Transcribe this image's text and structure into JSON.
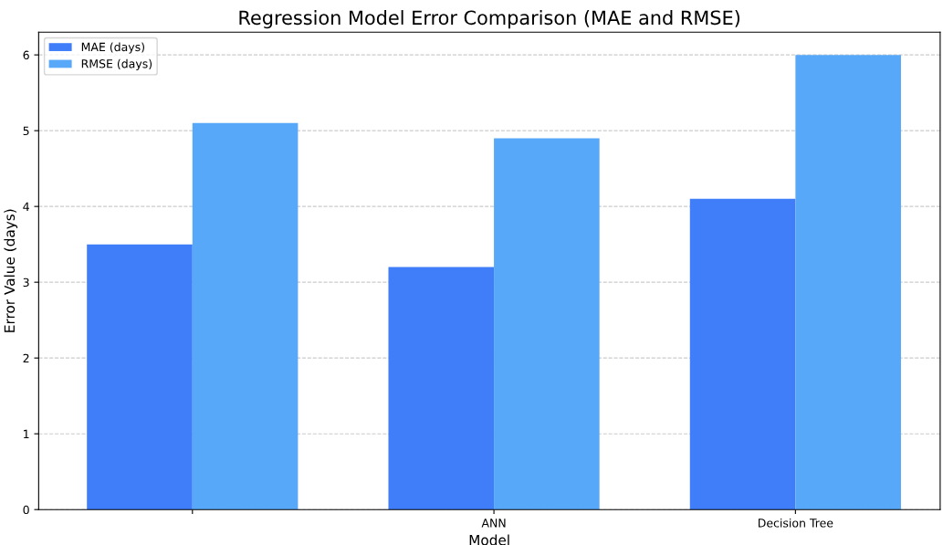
{
  "chart_data": {
    "type": "bar",
    "title": "Regression Model Error Comparison (MAE and RMSE)",
    "xlabel": "Model",
    "ylabel": "Error Value (days)",
    "categories": [
      null,
      "ANN",
      "Decision Tree"
    ],
    "series": [
      {
        "name": "MAE (days)",
        "color": "#3f7ef8",
        "values": [
          3.5,
          3.2,
          4.1
        ]
      },
      {
        "name": "RMSE (days)",
        "color": "#57a8f8",
        "values": [
          5.1,
          4.9,
          6.0
        ]
      }
    ],
    "ylim": [
      0,
      6.3
    ],
    "yticks": [
      0,
      1,
      2,
      3,
      4,
      5,
      6
    ],
    "grid": "y",
    "legend": "top left"
  }
}
